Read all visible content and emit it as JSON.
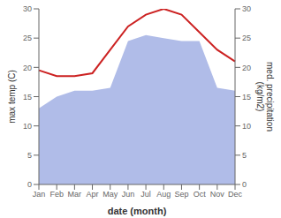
{
  "chart_data": {
    "type": "line",
    "categories": [
      "Jan",
      "Feb",
      "Mar",
      "Apr",
      "May",
      "Jun",
      "Jul",
      "Aug",
      "Sep",
      "Oct",
      "Nov",
      "Dec"
    ],
    "xlabel": "date (month)",
    "ylabel": "max temp (C)",
    "y2label": "med. precipitation\n(kg/m2)",
    "series": [
      {
        "type": "area",
        "axis": "y2",
        "color": "#b0bce8",
        "values": [
          13.0,
          15.0,
          16.0,
          16.0,
          16.5,
          24.5,
          25.5,
          25.0,
          24.5,
          24.5,
          16.5,
          16.0
        ]
      },
      {
        "type": "line",
        "color": "#cc2222",
        "values": [
          19.5,
          18.5,
          18.5,
          19.0,
          23.0,
          27.0,
          29.0,
          30.0,
          29.0,
          26.0,
          23.0,
          21.0
        ]
      }
    ],
    "ylim": [
      0,
      30
    ],
    "yticks": [
      0,
      5,
      10,
      15,
      20,
      25,
      30
    ],
    "y2lim": [
      0,
      30
    ],
    "y2ticks": [
      0,
      5,
      10,
      15,
      20,
      25,
      30
    ],
    "grid": false
  }
}
